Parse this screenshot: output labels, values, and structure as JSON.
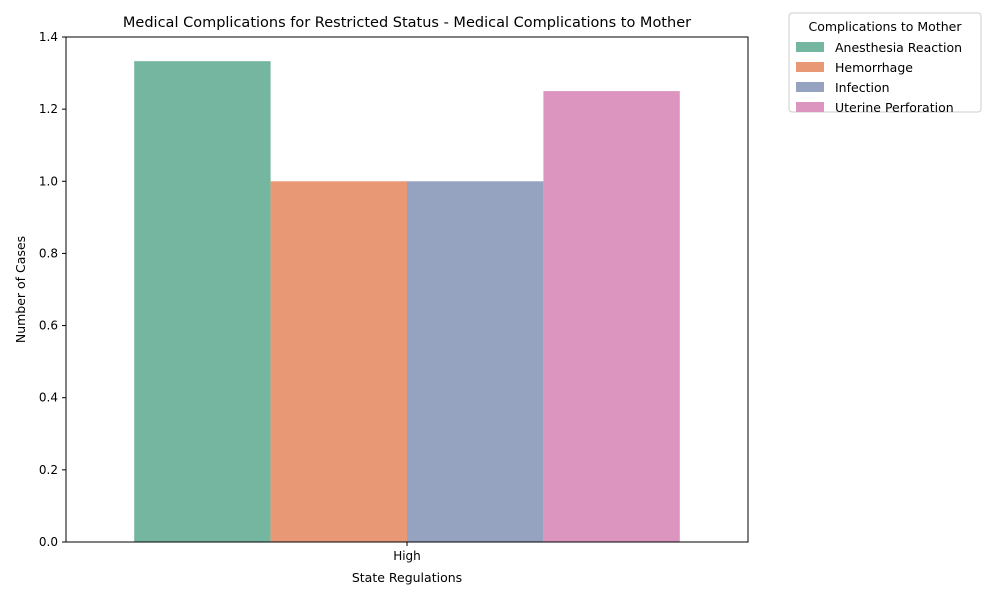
{
  "chart_data": {
    "type": "bar",
    "title": "Medical Complications for Restricted Status - Medical Complications to Mother",
    "xlabel": "State Regulations",
    "ylabel": "Number of Cases",
    "categories": [
      "High"
    ],
    "series": [
      {
        "name": "Anesthesia Reaction",
        "values": [
          1.333
        ],
        "color": "#74b6a0"
      },
      {
        "name": "Hemorrhage",
        "values": [
          1.0
        ],
        "color": "#e99875"
      },
      {
        "name": "Infection",
        "values": [
          1.0
        ],
        "color": "#95a3c1"
      },
      {
        "name": "Uterine Perforation",
        "values": [
          1.25
        ],
        "color": "#dc95bf"
      }
    ],
    "ylim": [
      0,
      1.4
    ],
    "yticks": [
      "0.0",
      "0.2",
      "0.4",
      "0.6",
      "0.8",
      "1.0",
      "1.2",
      "1.4"
    ],
    "grid": false,
    "legend": {
      "title": "Complications to Mother",
      "placement": "outside-top-right"
    }
  }
}
